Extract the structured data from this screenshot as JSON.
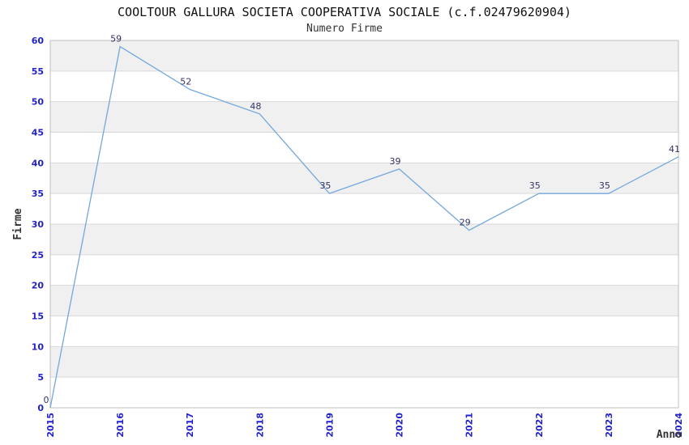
{
  "chart_data": {
    "type": "line",
    "title": "COOLTOUR GALLURA SOCIETA COOPERATIVA SOCIALE (c.f.02479620904)",
    "subtitle": "Numero Firme",
    "xlabel": "Anno",
    "ylabel": "Firme",
    "x": [
      "2015",
      "2016",
      "2017",
      "2018",
      "2019",
      "2020",
      "2021",
      "2022",
      "2023",
      "2024"
    ],
    "values": [
      0,
      59,
      52,
      48,
      35,
      39,
      29,
      35,
      35,
      41
    ],
    "ylim": [
      0,
      60
    ],
    "ytick_step": 5,
    "yticks": [
      0,
      5,
      10,
      15,
      20,
      25,
      30,
      35,
      40,
      45,
      50,
      55,
      60
    ],
    "grid": "horizontal-bands-alternating",
    "legend_position": "none",
    "markers": "none",
    "data_labels_visible": true,
    "colors": {
      "line": "#74a7dc",
      "axis_tick_label": "#2222cc",
      "data_label": "#333366",
      "band_gray": "#f0f0f0",
      "band_white": "#ffffff",
      "gridline": "#d9d9d9",
      "plot_border": "#c0c0c0",
      "title": "#111111",
      "subtitle": "#333333",
      "axis_title": "#333333",
      "background": "#ffffff"
    }
  }
}
